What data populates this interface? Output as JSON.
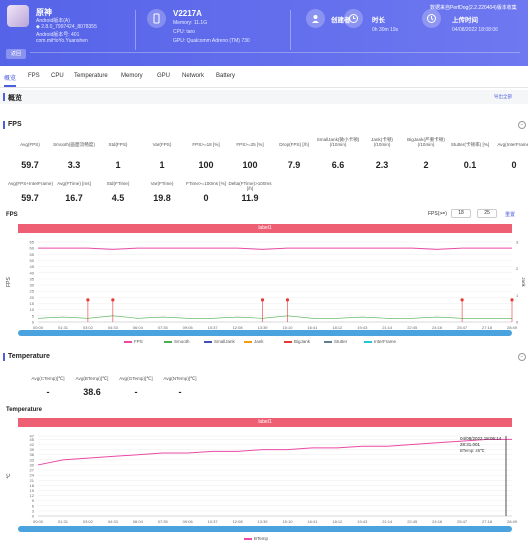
{
  "header": {
    "app": {
      "name": "原神",
      "line1": "Android版本(A)",
      "line2": "◆ 2.8.0_7997424_8078355",
      "line3": "Android版本号: 401",
      "line4": "com.miHoYo.Yuanshen"
    },
    "device": {
      "name": "V2217A",
      "memory": "Memory: 11.1G",
      "cpu": "CPU: taro",
      "gpu": "GPU: Qualcomm Adreno (TM) 730"
    },
    "creator": {
      "title": "创建者"
    },
    "duration": {
      "title": "时长",
      "value": "0h 30m 19s"
    },
    "upload": {
      "title": "上传时间",
      "value": "04/08/2022 18:08:06"
    },
    "top_link": "数据来自PerfDog(2.2.220404)版本收集",
    "back_label": "返回"
  },
  "tabs": [
    "概览",
    "FPS",
    "CPU",
    "Temperature",
    "Memory",
    "GPU",
    "Network",
    "Battery"
  ],
  "overview": {
    "title": "概览",
    "export": "导出全部"
  },
  "fps_section": {
    "title": "FPS",
    "stats": [
      {
        "label": "Avg(FPS)",
        "value": "59.7"
      },
      {
        "label": "Smooth(画面流畅度)",
        "value": "3.3"
      },
      {
        "label": "Std(FPS)",
        "value": "1"
      },
      {
        "label": "Var(FPS)",
        "value": "1"
      },
      {
        "label": "FPS>=18 [%]",
        "value": "100"
      },
      {
        "label": "FPS>=25 [%]",
        "value": "100"
      },
      {
        "label": "Drop(FPS) [/h]",
        "value": "7.9"
      },
      {
        "label": "SmallJank(微小卡顿)\n(/10min)",
        "value": "6.6"
      },
      {
        "label": "Jank(卡顿)\n(/10min)",
        "value": "2.3"
      },
      {
        "label": "BigJank(严重卡顿)\n(/10min)",
        "value": "2"
      },
      {
        "label": "Stutter(卡顿率) [%]",
        "value": "0.1"
      },
      {
        "label": "Avg(InterFrame)",
        "value": "0"
      },
      {
        "label": "Avg(FPS+InterFrame)",
        "value": "59.7"
      },
      {
        "label": "Avg(FTime) [ms]",
        "value": "16.7"
      },
      {
        "label": "Std(FTime)",
        "value": "4.5"
      },
      {
        "label": "Var(FTime)",
        "value": "19.8"
      },
      {
        "label": "FTime>=100ms [%]",
        "value": "0"
      },
      {
        "label": "Delta(FTime)>100ms [/h]",
        "value": "11.9"
      }
    ],
    "chart_title": "FPS",
    "fps_filter_label": "FPS(>=)",
    "fps_filter_1": "18",
    "fps_filter_2": "25",
    "fps_filter_btn": "重置",
    "label_band": "label1",
    "legend": [
      {
        "name": "FPS",
        "color": "#ea4aa6"
      },
      {
        "name": "Smooth",
        "color": "#4caf50"
      },
      {
        "name": "SmallJank",
        "color": "#3f51b5"
      },
      {
        "name": "Jank",
        "color": "#f39c12"
      },
      {
        "name": "BigJank",
        "color": "#e53935"
      },
      {
        "name": "Stutter",
        "color": "#607d8b"
      },
      {
        "name": "InterFrame",
        "color": "#26c6da"
      }
    ]
  },
  "temperature_section": {
    "title": "Temperature",
    "stats": [
      {
        "label": "Avg(CTemp)[℃]",
        "value": "-"
      },
      {
        "label": "Avg(BTemp)[℃]",
        "value": "38.6"
      },
      {
        "label": "Avg(GTemp)[℃]",
        "value": "-"
      },
      {
        "label": "Avg(NTemp)[℃]",
        "value": "-"
      }
    ],
    "chart_title": "Temperature",
    "label_band": "label1",
    "tooltip": {
      "date": "04/08/2022 18:06:14",
      "time": "28:31.001",
      "value": "BTemp: 45℃"
    },
    "legend": [
      {
        "name": "BTemp",
        "color": "#ea4aa6"
      }
    ]
  },
  "chart_data": [
    {
      "type": "line",
      "title": "FPS",
      "ylabel": "FPS",
      "ylim": [
        0,
        65
      ],
      "yticks": [
        "0",
        "5",
        "10",
        "15",
        "20",
        "25",
        "30",
        "35",
        "40",
        "45",
        "50",
        "55",
        "60",
        "65"
      ],
      "y2ticks": [
        "0",
        "1",
        "2",
        "3"
      ],
      "y2label": "Jank",
      "x": [
        "00:00",
        "01:31",
        "03:02",
        "04:33",
        "06:04",
        "07:35",
        "09:06",
        "10:37",
        "12:08",
        "13:39",
        "15:10",
        "16:41",
        "18:12",
        "19:43",
        "21:14",
        "22:45",
        "24:16",
        "25:47",
        "27:18",
        "28:49"
      ],
      "series": [
        {
          "name": "FPS",
          "values": [
            60,
            60,
            60,
            59,
            60,
            60,
            60,
            60,
            60,
            59,
            60,
            60,
            60,
            60,
            60,
            60,
            59,
            60,
            60,
            60
          ]
        },
        {
          "name": "Smooth",
          "values": [
            3,
            4,
            3,
            5,
            3,
            4,
            3,
            3,
            4,
            3,
            5,
            3,
            3,
            4,
            3,
            3,
            4,
            3,
            3,
            3
          ]
        }
      ],
      "jank_markers": [
        "03:02",
        "04:33",
        "13:39",
        "15:10",
        "25:47",
        "28:49"
      ],
      "legend": "bottom"
    },
    {
      "type": "line",
      "title": "Temperature",
      "ylabel": "℃",
      "ylim": [
        0,
        47
      ],
      "yticks": [
        "0",
        "3",
        "6",
        "9",
        "12",
        "15",
        "18",
        "21",
        "24",
        "27",
        "30",
        "33",
        "36",
        "39",
        "42",
        "45",
        "47"
      ],
      "x": [
        "00:00",
        "01:31",
        "03:02",
        "04:33",
        "06:04",
        "07:35",
        "09:06",
        "10:37",
        "12:08",
        "13:39",
        "15:10",
        "16:41",
        "18:12",
        "19:43",
        "21:14",
        "22:45",
        "24:16",
        "25:47",
        "27:18",
        "28:49"
      ],
      "series": [
        {
          "name": "BTemp",
          "values": [
            30,
            33,
            34,
            35,
            36,
            37,
            37,
            38,
            38,
            39,
            39,
            40,
            40,
            41,
            41,
            42,
            43,
            44,
            45,
            45
          ]
        }
      ],
      "legend": "bottom"
    }
  ]
}
